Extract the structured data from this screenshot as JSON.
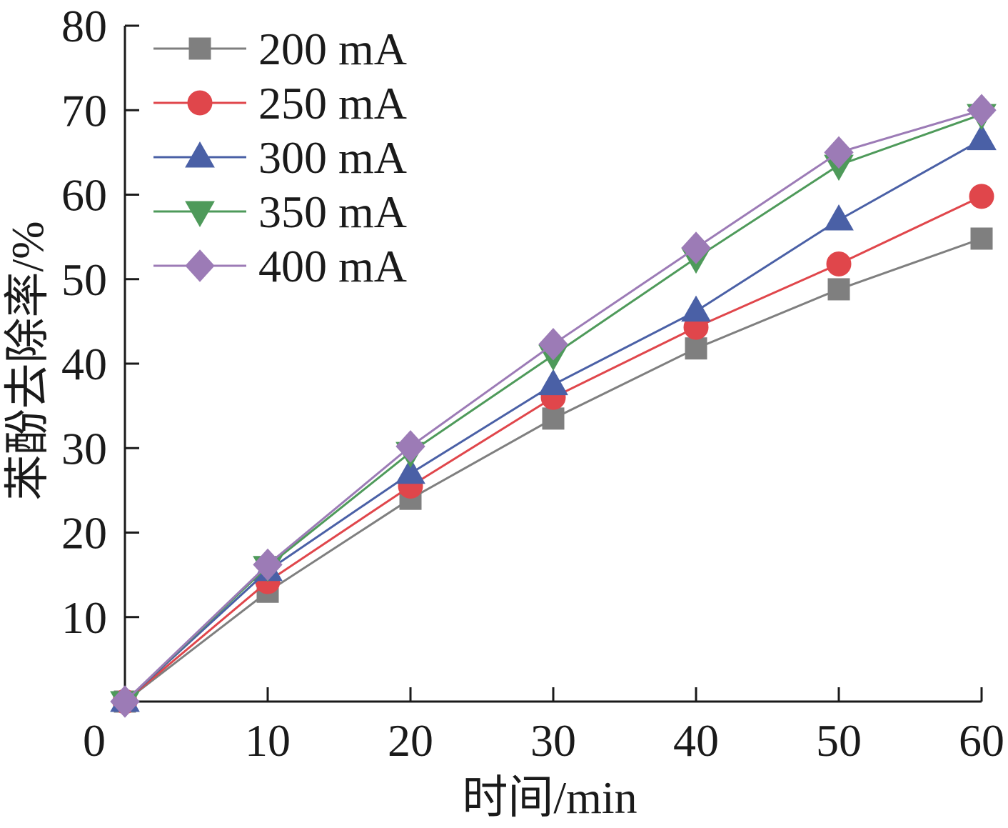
{
  "chart_data": {
    "type": "line",
    "xlabel": "时间/min",
    "ylabel": "苯酚去除率/%",
    "x": [
      0,
      10,
      20,
      30,
      40,
      50,
      60
    ],
    "xlim": [
      0,
      60
    ],
    "ylim": [
      0,
      80
    ],
    "x_ticks": [
      0,
      10,
      20,
      30,
      40,
      50,
      60
    ],
    "y_ticks": [
      10,
      20,
      30,
      40,
      50,
      60,
      70,
      80
    ],
    "x_tick_labels": [
      "0",
      "10",
      "20",
      "30",
      "40",
      "50",
      "60"
    ],
    "y_tick_labels": [
      "10",
      "20",
      "30",
      "40",
      "50",
      "60",
      "70",
      "80"
    ],
    "legend_position": "top-left",
    "grid": false,
    "series": [
      {
        "name": "200 mA",
        "color": "#7f7f7f",
        "marker": "square",
        "values": [
          0,
          13.0,
          24.0,
          33.5,
          41.8,
          48.8,
          54.8
        ]
      },
      {
        "name": "250 mA",
        "color": "#e0464b",
        "marker": "circle",
        "values": [
          0,
          14.2,
          25.5,
          36.0,
          44.3,
          51.8,
          59.8
        ]
      },
      {
        "name": "300 mA",
        "color": "#4a60a6",
        "marker": "triangle-up",
        "values": [
          0,
          15.5,
          27.0,
          37.5,
          46.2,
          57.0,
          66.5
        ]
      },
      {
        "name": "350 mA",
        "color": "#4e9a5a",
        "marker": "triangle-down",
        "values": [
          0,
          16.0,
          29.5,
          41.0,
          52.5,
          63.5,
          69.5
        ]
      },
      {
        "name": "400 mA",
        "color": "#9c7bb6",
        "marker": "diamond",
        "values": [
          0,
          16.2,
          30.2,
          42.3,
          53.7,
          65.0,
          70.0
        ]
      }
    ]
  }
}
